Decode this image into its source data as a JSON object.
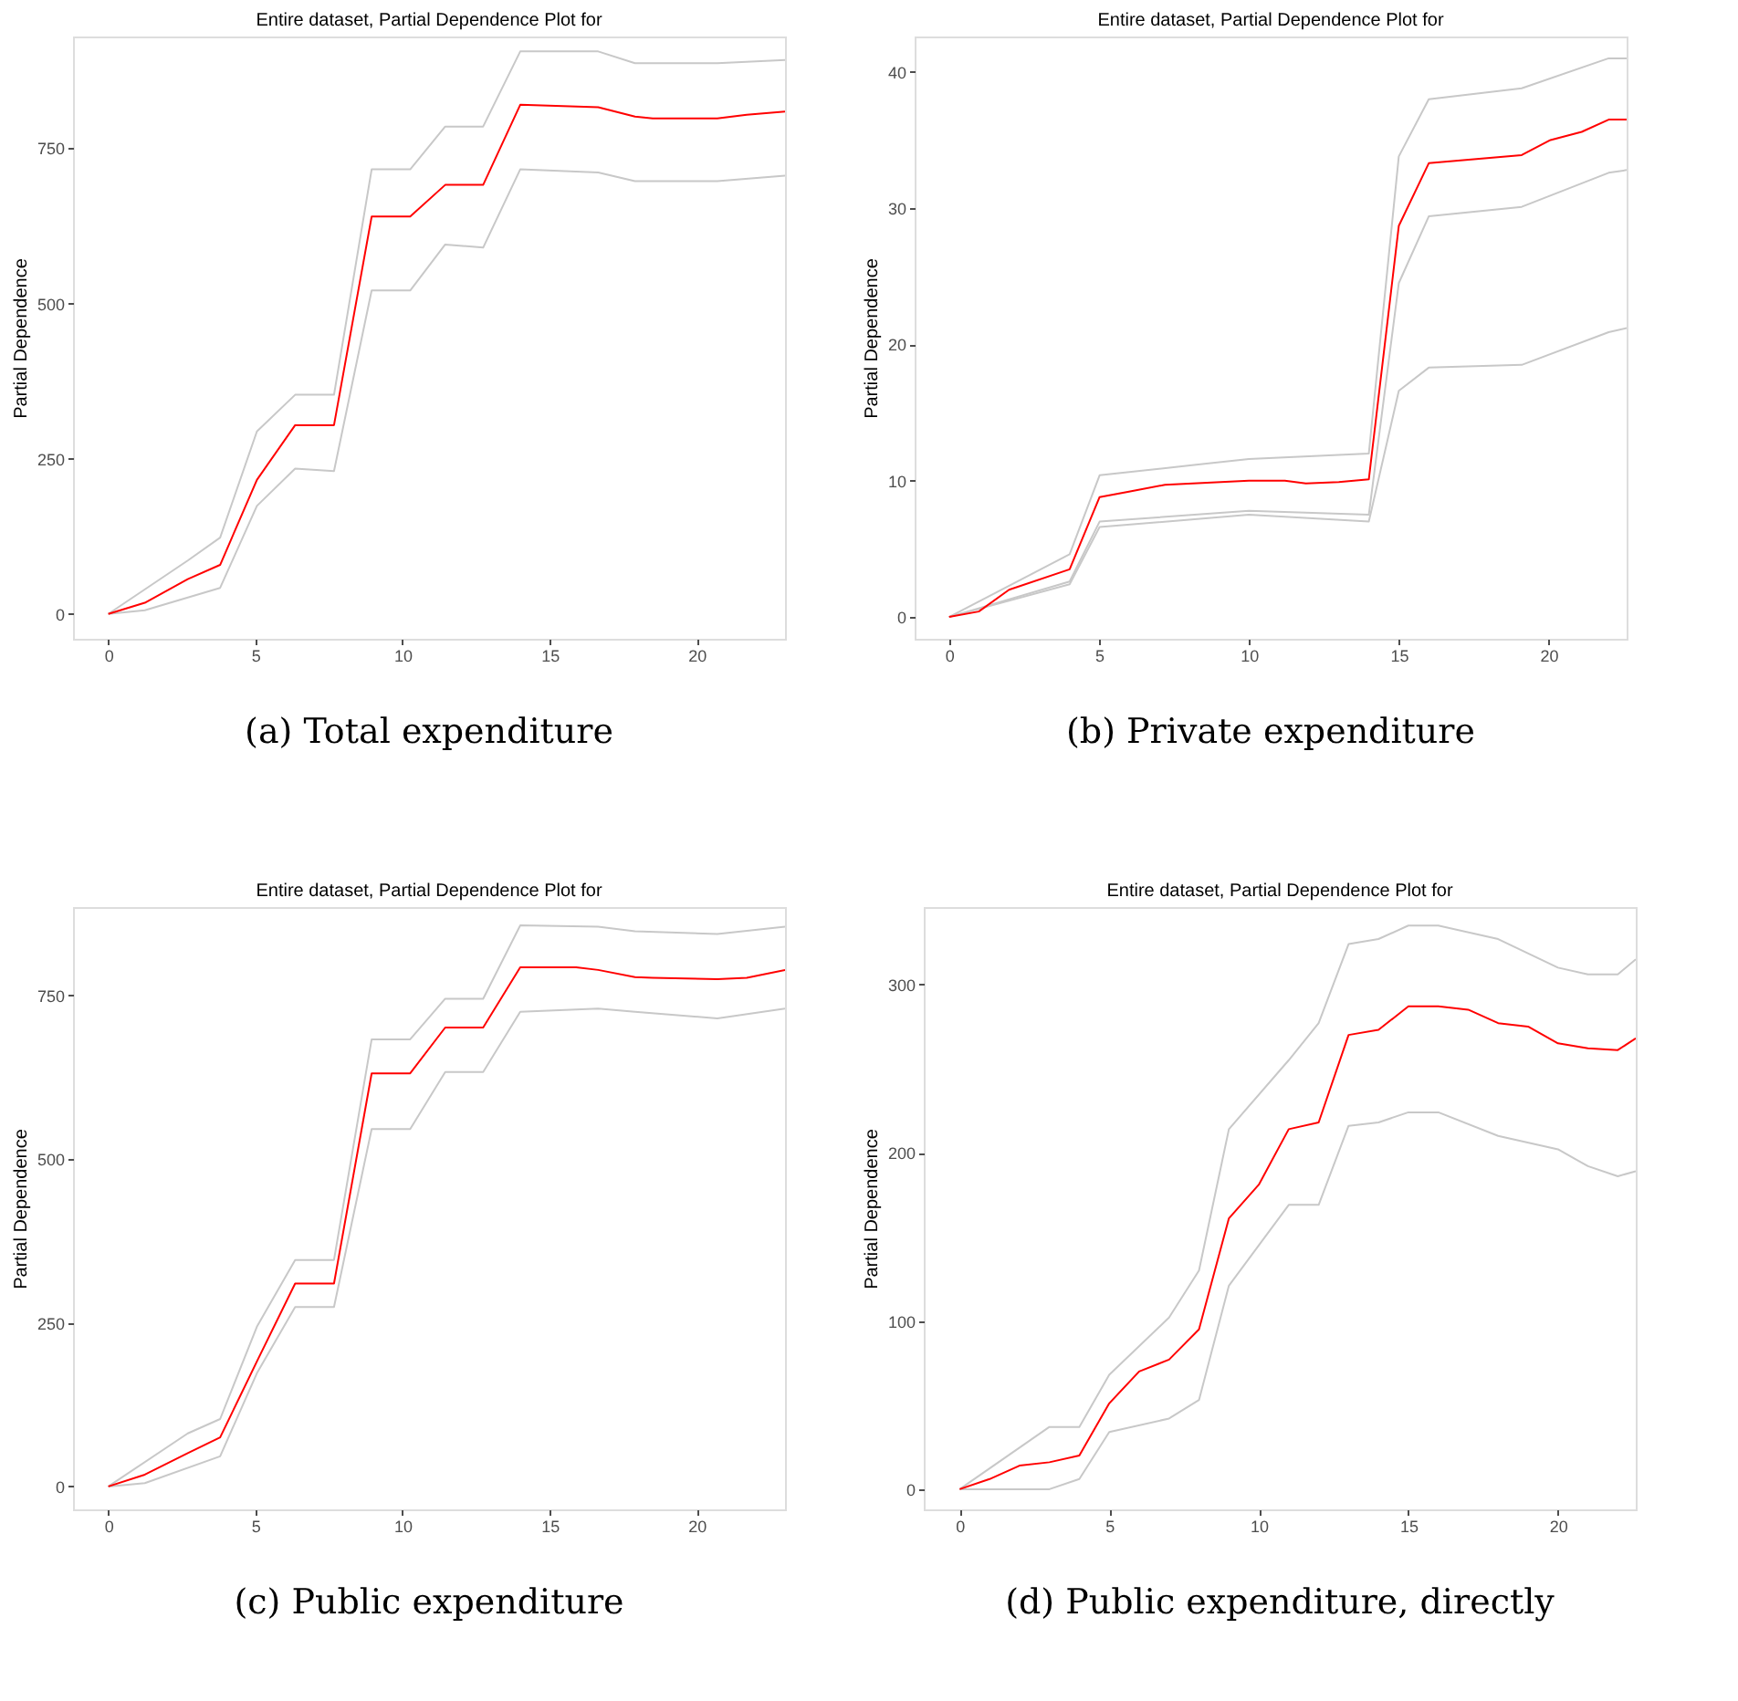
{
  "chart_data": [
    {
      "type": "line",
      "title": "Entire dataset, Partial Dependence Plot for",
      "ylabel": "Partial Dependence",
      "annotations": [
        "(a) Total expenditure"
      ],
      "xlim": [
        -1.2,
        23
      ],
      "xticks": [
        0,
        5,
        10,
        15,
        20
      ],
      "ylim": [
        -40,
        930
      ],
      "yticks": [
        0,
        250,
        500,
        750
      ],
      "grid": false,
      "legend": false,
      "marker": "none",
      "line_style": "solid",
      "series": [
        {
          "color": "#c8c8c8",
          "x": [
            0,
            2.7,
            3.8,
            5.05,
            6.35,
            7.67,
            8.95,
            10.26,
            11.45,
            12.74,
            14.0,
            16.65,
            17.9,
            20.7,
            23
          ],
          "values": [
            0,
            86,
            123,
            294,
            353,
            353,
            716,
            716,
            785,
            785,
            906,
            906,
            887,
            887,
            892
          ]
        },
        {
          "color": "#c8c8c8",
          "x": [
            0,
            1.24,
            3.8,
            5.05,
            6.35,
            7.67,
            8.95,
            10.26,
            11.45,
            12.74,
            14.0,
            16.65,
            17.9,
            20.7,
            23
          ],
          "values": [
            0,
            6,
            42,
            174,
            234,
            230,
            521,
            521,
            595,
            590,
            716,
            711,
            697,
            697,
            706
          ]
        },
        {
          "color": "#ff0000",
          "x": [
            0,
            1.24,
            2.7,
            3.8,
            5.05,
            6.35,
            7.67,
            8.95,
            10.26,
            11.45,
            12.74,
            14.0,
            16.65,
            17.9,
            18.5,
            20.7,
            21.7,
            23
          ],
          "values": [
            0,
            18,
            56,
            79,
            216,
            304,
            304,
            640,
            640,
            691,
            691,
            820,
            816,
            801,
            798,
            798,
            804,
            809
          ]
        }
      ]
    },
    {
      "type": "line",
      "title": "Entire dataset, Partial Dependence Plot for",
      "ylabel": "Partial Dependence",
      "annotations": [
        "(b) Private expenditure"
      ],
      "xlim": [
        -1.15,
        22.6
      ],
      "xticks": [
        0,
        5,
        10,
        15,
        20
      ],
      "ylim": [
        -1.6,
        42.6
      ],
      "yticks": [
        0,
        10,
        20,
        30,
        40
      ],
      "grid": false,
      "legend": false,
      "marker": "none",
      "line_style": "solid",
      "series": [
        {
          "color": "#c8c8c8",
          "x": [
            0,
            4.02,
            5.02,
            10,
            14,
            15,
            16,
            19.1,
            22,
            22.6
          ],
          "values": [
            0,
            4.6,
            10.4,
            11.6,
            12.0,
            33.8,
            38.0,
            38.8,
            41.0,
            41.0
          ]
        },
        {
          "color": "#c8c8c8",
          "x": [
            0,
            4.02,
            5.02,
            10,
            14,
            15,
            16,
            19.1,
            22,
            22.6
          ],
          "values": [
            0,
            2.6,
            7.0,
            7.8,
            7.5,
            24.5,
            29.4,
            30.1,
            32.6,
            32.8
          ]
        },
        {
          "color": "#c8c8c8",
          "x": [
            0,
            4.02,
            5.02,
            10,
            14,
            15,
            16,
            19.1,
            22,
            22.6
          ],
          "values": [
            0,
            2.4,
            6.6,
            7.5,
            7.0,
            16.6,
            18.3,
            18.5,
            20.9,
            21.2
          ]
        },
        {
          "color": "#ff0000",
          "x": [
            0,
            0.99,
            2.0,
            4.02,
            5.02,
            6.0,
            7.2,
            10,
            11.2,
            11.9,
            13,
            14.0,
            15.0,
            16.0,
            19.1,
            20.06,
            21.1,
            22,
            22.6
          ],
          "values": [
            0,
            0.4,
            2.0,
            3.5,
            8.8,
            9.2,
            9.7,
            10.0,
            10.0,
            9.8,
            9.9,
            10.1,
            28.7,
            33.3,
            33.9,
            35.0,
            35.6,
            36.5,
            36.5
          ]
        }
      ]
    },
    {
      "type": "line",
      "title": "Entire dataset, Partial Dependence Plot for",
      "ylabel": "Partial Dependence",
      "annotations": [
        "(c) Public expenditure"
      ],
      "xlim": [
        -1.2,
        23
      ],
      "xticks": [
        0,
        5,
        10,
        15,
        20
      ],
      "ylim": [
        -35,
        885
      ],
      "yticks": [
        0,
        250,
        500,
        750
      ],
      "grid": false,
      "legend": false,
      "marker": "none",
      "line_style": "solid",
      "series": [
        {
          "color": "#c8c8c8",
          "x": [
            0,
            2.7,
            3.8,
            5.05,
            6.35,
            7.67,
            8.95,
            10.26,
            11.45,
            12.74,
            14.0,
            16.65,
            17.9,
            20.7,
            23
          ],
          "values": [
            0,
            81,
            103,
            244,
            346,
            346,
            683,
            683,
            745,
            745,
            857,
            855,
            848,
            844,
            855
          ]
        },
        {
          "color": "#c8c8c8",
          "x": [
            0,
            1.24,
            3.8,
            5.05,
            6.35,
            7.67,
            8.95,
            10.26,
            11.45,
            12.74,
            14.0,
            16.65,
            17.9,
            20.7,
            23
          ],
          "values": [
            0,
            5,
            46,
            173,
            274,
            274,
            546,
            546,
            633,
            633,
            725,
            730,
            725,
            715,
            730
          ]
        },
        {
          "color": "#ff0000",
          "x": [
            0,
            1.24,
            2.7,
            3.8,
            5.05,
            6.35,
            7.67,
            8.95,
            10.26,
            11.45,
            12.74,
            14.0,
            15.9,
            16.65,
            17.9,
            18.5,
            20.7,
            21.7,
            23
          ],
          "values": [
            0,
            18,
            51,
            75,
            191,
            310,
            310,
            631,
            631,
            701,
            701,
            793,
            793,
            789,
            778,
            777,
            775,
            777,
            789
          ]
        }
      ]
    },
    {
      "type": "line",
      "title": "Entire dataset, Partial Dependence Plot for",
      "ylabel": "Partial Dependence",
      "annotations": [
        "(d) Public expenditure, directly"
      ],
      "xlim": [
        -1.2,
        22.6
      ],
      "xticks": [
        0,
        5,
        10,
        15,
        20
      ],
      "ylim": [
        -12,
        346
      ],
      "yticks": [
        0,
        100,
        200,
        300
      ],
      "grid": false,
      "legend": false,
      "marker": "none",
      "line_style": "solid",
      "series": [
        {
          "color": "#c8c8c8",
          "x": [
            0,
            3,
            4,
            5,
            7,
            8,
            9,
            11,
            12,
            13,
            14,
            15,
            16,
            18,
            20,
            21,
            22,
            22.6
          ],
          "values": [
            0,
            37,
            37,
            68,
            102,
            130,
            214,
            255,
            277,
            324,
            327,
            335,
            335,
            327,
            310,
            306,
            306,
            315
          ]
        },
        {
          "color": "#c8c8c8",
          "x": [
            0,
            3,
            4,
            5,
            7,
            8,
            9,
            10,
            11,
            12,
            13,
            14,
            15,
            16,
            18,
            20,
            21,
            22,
            22.6
          ],
          "values": [
            0,
            0,
            6,
            34,
            42,
            53,
            121,
            145,
            169,
            169,
            216,
            218,
            224,
            224,
            210,
            202,
            192,
            186,
            189
          ]
        },
        {
          "color": "#ff0000",
          "x": [
            0,
            1,
            2,
            3,
            4,
            5,
            6,
            7,
            8,
            9,
            10,
            11,
            12,
            13,
            14,
            15,
            16,
            17,
            18,
            19,
            20,
            21,
            22,
            22.6
          ],
          "values": [
            0,
            6,
            14,
            16,
            20,
            51,
            70,
            77,
            95,
            161,
            181,
            214,
            218,
            270,
            273,
            287,
            287,
            285,
            277,
            275,
            265,
            262,
            261,
            268
          ]
        }
      ]
    }
  ]
}
